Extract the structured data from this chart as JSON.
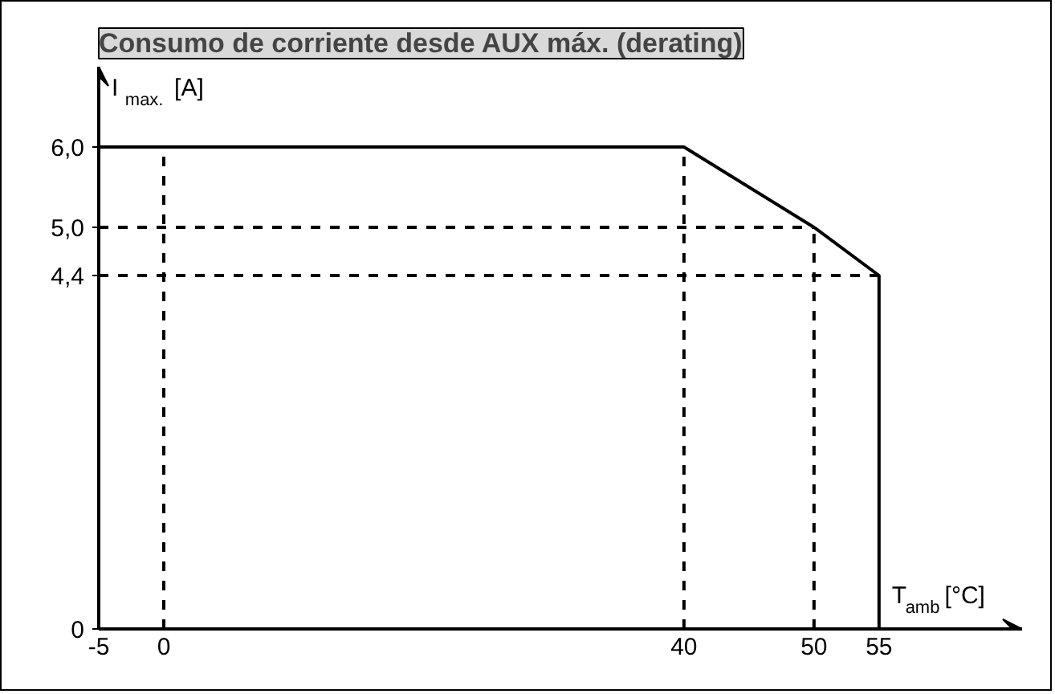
{
  "chart_data": {
    "type": "line",
    "title": "Consumo de corriente desde AUX máx. (derating)",
    "xlabel": "T$_{amb}$ [°C]",
    "ylabel": "I$_{max.}$ [A]",
    "x": [
      -5,
      40,
      50,
      55,
      55
    ],
    "series": [
      {
        "color": "#000000",
        "values": [
          6.0,
          6.0,
          5.0,
          4.4,
          0
        ]
      }
    ],
    "xlim": [
      -5,
      66
    ],
    "ylim": [
      0,
      7
    ],
    "xticks": [
      -5,
      0,
      40,
      50,
      55
    ],
    "yticks": [
      0,
      {
        "value": 4.4,
        "label": "4,4"
      },
      {
        "value": 5.0,
        "label": "5,0"
      },
      {
        "value": 6.0,
        "label": "6,0"
      }
    ],
    "ref_lines": [
      {
        "axis": "x",
        "value": 0,
        "line_style": "dashed",
        "color": "#000000"
      },
      {
        "axis": "x",
        "value": 40,
        "line_style": "dashed",
        "color": "#000000"
      },
      {
        "axis": "x",
        "value": 50,
        "line_style": "dashed",
        "color": "#000000"
      },
      {
        "axis": "y",
        "value": 5.0,
        "line_style": "dashed",
        "color": "#000000"
      },
      {
        "axis": "y",
        "value": 4.4,
        "line_style": "dashed",
        "color": "#000000"
      }
    ],
    "grid": false,
    "marker": "none",
    "line_style": "solid"
  }
}
